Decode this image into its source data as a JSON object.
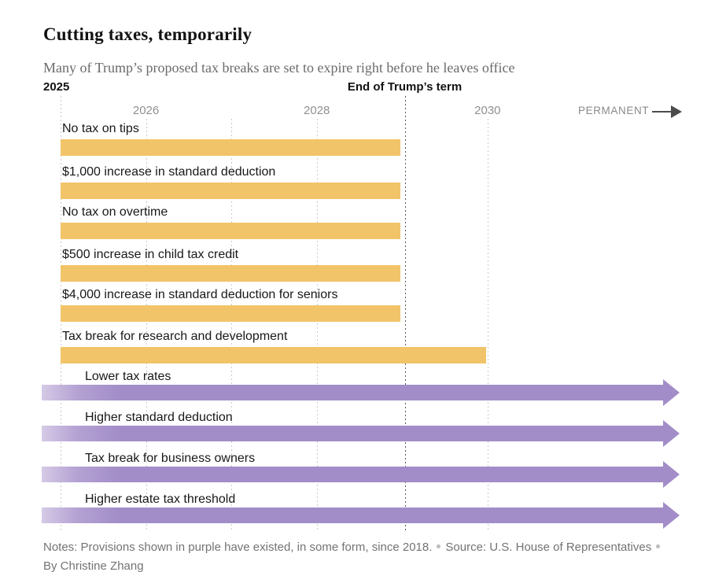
{
  "header": {
    "title": "Cutting taxes, temporarily",
    "subtitle": "Many of Trump’s proposed tax breaks are set to expire right before he leaves office"
  },
  "axis": {
    "start_label": "2025",
    "term_end_label": "End of Trump’s term",
    "ticks": [
      "2026",
      "2028",
      "2030"
    ],
    "permanent_label": "PERMANENT",
    "permanent_arrow_icon": "right-arrow"
  },
  "chart_data": {
    "type": "gantt-timeline",
    "title": "Cutting taxes, temporarily",
    "x_axis": {
      "unit": "year",
      "visible_start": 2025,
      "tick_years": [
        2026,
        2028,
        2030
      ],
      "faint_gridline_years": [
        2025,
        2026,
        2027,
        2028,
        2030
      ],
      "term_end_year": 2029.03,
      "term_end_annotation": "End of Trump’s term"
    },
    "colors": {
      "temporary_bar": "#f2c469",
      "permanent_bar": "#a28dc8",
      "permanent_bar_fade": "#d5cae6"
    },
    "rows": [
      {
        "label": "No tax on tips",
        "start_year": 2025,
        "end_year": 2029,
        "permanent": false
      },
      {
        "label": "$1,000 increase in standard deduction",
        "start_year": 2025,
        "end_year": 2029,
        "permanent": false
      },
      {
        "label": "No tax on overtime",
        "start_year": 2025,
        "end_year": 2029,
        "permanent": false
      },
      {
        "label": "$500 increase in child tax credit",
        "start_year": 2025,
        "end_year": 2029,
        "permanent": false
      },
      {
        "label": "$4,000 increase in standard deduction for seniors",
        "start_year": 2025,
        "end_year": 2029,
        "permanent": false
      },
      {
        "label": "Tax break for research and development",
        "start_year": 2025,
        "end_year": 2030,
        "permanent": false
      },
      {
        "label": "Lower tax rates",
        "since_year": 2018,
        "permanent": true
      },
      {
        "label": "Higher standard deduction",
        "since_year": 2018,
        "permanent": true
      },
      {
        "label": "Tax break for business owners",
        "since_year": 2018,
        "permanent": true
      },
      {
        "label": "Higher estate tax threshold",
        "since_year": 2018,
        "permanent": true
      }
    ]
  },
  "footer": {
    "notes": "Notes: Provisions shown in purple have existed, in some form, since 2018.",
    "source": "Source: U.S. House of Representatives",
    "byline": "By Christine Zhang"
  }
}
